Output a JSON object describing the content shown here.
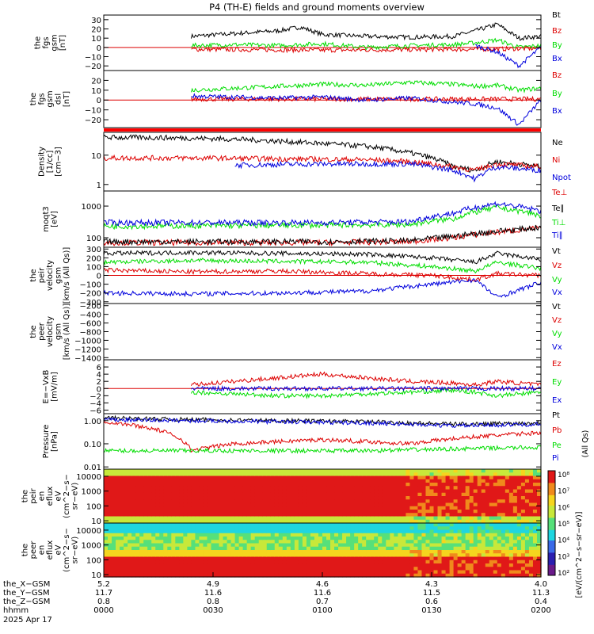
{
  "chart_data": {
    "title": "P4 (TH-E) fields and ground moments overview",
    "type": "line",
    "panels": [
      {
        "ylabel_lines": [
          "the",
          "fgs",
          "gsm",
          "[nT]"
        ],
        "ylim": [
          -25,
          35
        ],
        "yticks": [
          "30",
          "20",
          "10",
          "0",
          "−10",
          "−20"
        ],
        "ytick_values": [
          30,
          20,
          10,
          0,
          -10,
          -20
        ],
        "zero_line": true,
        "series": [
          {
            "name": "Bt",
            "color": "#000000",
            "x": [
              0.2,
              0.3,
              0.4,
              0.45,
              0.5,
              0.6,
              0.7,
              0.8,
              0.85,
              0.9,
              0.95,
              1.0
            ],
            "y": [
              12,
              15,
              18,
              22,
              14,
              12,
              11,
              12,
              18,
              25,
              10,
              12
            ]
          },
          {
            "name": "Bz",
            "color": "#dd0000",
            "x": [
              0.2,
              0.5,
              0.85,
              1.0
            ],
            "y": [
              -2,
              -3,
              -2,
              -1
            ]
          },
          {
            "name": "By",
            "color": "#00dd00",
            "x": [
              0.2,
              0.3,
              0.4,
              0.5,
              0.6,
              0.7,
              0.8,
              0.85,
              0.9,
              0.95,
              1.0
            ],
            "y": [
              2,
              3,
              2,
              4,
              0,
              2,
              3,
              5,
              8,
              0,
              2
            ]
          },
          {
            "name": "Bx",
            "color": "#0000dd",
            "x": [
              0.85,
              0.9,
              0.95,
              1.0
            ],
            "y": [
              2,
              -5,
              -20,
              0
            ]
          }
        ]
      },
      {
        "ylabel_lines": [
          "the",
          "fgs",
          "gsm",
          "dsl",
          "[nT]"
        ],
        "ylim": [
          -28,
          30
        ],
        "yticks": [
          "20",
          "10",
          "0",
          "−10",
          "−20"
        ],
        "ytick_values": [
          20,
          10,
          0,
          -10,
          -20
        ],
        "zero_line": true,
        "series": [
          {
            "name": "Bz",
            "color": "#dd0000",
            "x": [
              0.2,
              1.0
            ],
            "y": [
              1,
              1
            ]
          },
          {
            "name": "By",
            "color": "#00dd00",
            "x": [
              0.2,
              0.3,
              0.4,
              0.5,
              0.6,
              0.7,
              0.8,
              0.85,
              0.9,
              0.95,
              1.0
            ],
            "y": [
              10,
              12,
              14,
              16,
              15,
              18,
              16,
              14,
              15,
              10,
              12
            ]
          },
          {
            "name": "Bx",
            "color": "#0000dd",
            "x": [
              0.2,
              0.3,
              0.4,
              0.5,
              0.6,
              0.7,
              0.8,
              0.85,
              0.9,
              0.95,
              1.0
            ],
            "y": [
              4,
              3,
              2,
              3,
              0,
              2,
              -2,
              -4,
              -8,
              -25,
              0
            ]
          }
        ]
      },
      {
        "ylabel_lines": [
          "Density",
          "[1/cc]",
          "[cm−3]"
        ],
        "log": true,
        "ylim": [
          0.6,
          60
        ],
        "yticks": [
          "10",
          "1"
        ],
        "ytick_values": [
          10,
          1
        ],
        "series": [
          {
            "name": "Ne",
            "color": "#000000",
            "x": [
              0,
              0.1,
              0.2,
              0.3,
              0.4,
              0.5,
              0.6,
              0.7,
              0.8,
              0.85,
              0.9,
              0.95,
              1.0
            ],
            "y": [
              40,
              40,
              38,
              35,
              30,
              25,
              20,
              12,
              4,
              3,
              6,
              5,
              4
            ]
          },
          {
            "name": "Ni",
            "color": "#dd0000",
            "x": [
              0,
              0.2,
              0.4,
              0.6,
              0.7,
              0.8,
              0.85,
              0.9,
              1.0
            ],
            "y": [
              8,
              8,
              7.5,
              7,
              6,
              4,
              3,
              5,
              4
            ]
          },
          {
            "name": "Npot",
            "color": "#0000dd",
            "x": [
              0.3,
              0.4,
              0.5,
              0.6,
              0.7,
              0.8,
              0.85,
              0.9,
              1.0
            ],
            "y": [
              4.5,
              4.8,
              5,
              5,
              5,
              3,
              1.5,
              4,
              3
            ]
          }
        ]
      },
      {
        "ylabel_lines": [
          "moqt3",
          "[eV]"
        ],
        "log": true,
        "ylim": [
          50,
          3000
        ],
        "yticks": [
          "1000",
          "100"
        ],
        "ytick_values": [
          1000,
          100
        ],
        "series": [
          {
            "name": "Te⊥",
            "color": "#dd0000",
            "x": [
              0,
              0.5,
              0.7,
              0.8,
              0.9,
              1.0
            ],
            "y": [
              70,
              70,
              75,
              100,
              150,
              200
            ]
          },
          {
            "name": "Te∥",
            "color": "#000000",
            "x": [
              0,
              0.5,
              0.7,
              0.8,
              0.9,
              1.0
            ],
            "y": [
              75,
              75,
              80,
              110,
              160,
              210
            ]
          },
          {
            "name": "Ti⊥",
            "color": "#00dd00",
            "x": [
              0,
              0.5,
              0.7,
              0.8,
              0.9,
              1.0
            ],
            "y": [
              230,
              250,
              260,
              400,
              900,
              500
            ]
          },
          {
            "name": "Ti∥",
            "color": "#0000dd",
            "x": [
              0,
              0.5,
              0.7,
              0.8,
              0.9,
              1.0
            ],
            "y": [
              300,
              300,
              320,
              600,
              1200,
              700
            ]
          }
        ]
      },
      {
        "ylabel_lines": [
          "the",
          "peir",
          "velocity",
          "gsm",
          "[km/s (All Qs)]"
        ],
        "ylim": [
          -320,
          320
        ],
        "yticks": [
          "300",
          "200",
          "100",
          "0",
          "−100",
          "−200",
          "−300"
        ],
        "ytick_values": [
          300,
          200,
          100,
          0,
          -100,
          -200,
          -300
        ],
        "zero_line": true,
        "series": [
          {
            "name": "Vt",
            "color": "#000000",
            "x": [
              0,
              0.2,
              0.4,
              0.6,
              0.75,
              0.85,
              0.9,
              1.0
            ],
            "y": [
              250,
              260,
              250,
              240,
              200,
              150,
              250,
              180
            ]
          },
          {
            "name": "Vz",
            "color": "#dd0000",
            "x": [
              0,
              0.2,
              0.4,
              0.6,
              0.75,
              0.85,
              0.9,
              1.0
            ],
            "y": [
              60,
              40,
              50,
              20,
              0,
              -50,
              20,
              0
            ]
          },
          {
            "name": "Vy",
            "color": "#00dd00",
            "x": [
              0,
              0.2,
              0.4,
              0.6,
              0.75,
              0.85,
              0.9,
              1.0
            ],
            "y": [
              150,
              170,
              160,
              150,
              100,
              50,
              150,
              80
            ]
          },
          {
            "name": "Vx",
            "color": "#0000dd",
            "x": [
              0,
              0.2,
              0.4,
              0.6,
              0.75,
              0.85,
              0.9,
              1.0
            ],
            "y": [
              -200,
              -210,
              -200,
              -180,
              -100,
              -50,
              -250,
              -80
            ]
          }
        ]
      },
      {
        "ylabel_lines": [
          "the",
          "peer",
          "velocity",
          "gsm",
          "[km/s (All Qs)]"
        ],
        "ylim": [
          -1450,
          -150
        ],
        "yticks": [
          "−200",
          "−400",
          "−600",
          "−800",
          "−1000",
          "−1200",
          "−1400"
        ],
        "ytick_values": [
          -200,
          -400,
          -600,
          -800,
          -1000,
          -1200,
          -1400
        ],
        "series": [
          {
            "name": "Vt",
            "color": "#000000",
            "x": [],
            "y": []
          },
          {
            "name": "Vz",
            "color": "#dd0000",
            "x": [],
            "y": []
          },
          {
            "name": "Vy",
            "color": "#00dd00",
            "x": [],
            "y": []
          },
          {
            "name": "Vx",
            "color": "#0000dd",
            "x": [],
            "y": []
          }
        ]
      },
      {
        "ylabel_lines": [
          "E=−VxB",
          "[mV/m]"
        ],
        "ylim": [
          -7,
          8
        ],
        "yticks": [
          "6",
          "4",
          "2",
          "0",
          "−2",
          "−4",
          "−6"
        ],
        "ytick_values": [
          6,
          4,
          2,
          0,
          -2,
          -4,
          -6
        ],
        "zero_line": true,
        "series": [
          {
            "name": "Ez",
            "color": "#dd0000",
            "x": [
              0.2,
              0.3,
              0.4,
              0.5,
              0.6,
              0.7,
              0.8,
              0.85,
              0.9,
              1.0
            ],
            "y": [
              1,
              2,
              3,
              4,
              3,
              2,
              1.5,
              1,
              2,
              1
            ]
          },
          {
            "name": "Ey",
            "color": "#00dd00",
            "x": [
              0.2,
              0.3,
              0.4,
              0.5,
              0.6,
              0.7,
              0.8,
              0.85,
              0.9,
              1.0
            ],
            "y": [
              -1,
              -1.5,
              -2,
              -2,
              -1.5,
              -1,
              -0.5,
              -1,
              -2,
              -1
            ]
          },
          {
            "name": "Ex",
            "color": "#0000dd",
            "x": [
              0.2,
              1.0
            ],
            "y": [
              0,
              0
            ]
          }
        ]
      },
      {
        "ylabel_lines": [
          "Pressure",
          "[nPa]"
        ],
        "log": true,
        "ylim": [
          0.008,
          2
        ],
        "yticks": [
          "1.00",
          "0.10",
          "0.01"
        ],
        "ytick_values": [
          1,
          0.1,
          0.01
        ],
        "series": [
          {
            "name": "Pt",
            "color": "#000000",
            "x": [
              0,
              0.2,
              0.4,
              0.6,
              0.8,
              1.0
            ],
            "y": [
              1.3,
              1.1,
              1.0,
              0.9,
              0.7,
              0.8
            ]
          },
          {
            "name": "Pb",
            "color": "#dd0000",
            "x": [
              0,
              0.1,
              0.2,
              0.3,
              0.5,
              0.7,
              0.85,
              1.0
            ],
            "y": [
              0.9,
              0.5,
              0.05,
              0.1,
              0.15,
              0.1,
              0.2,
              0.3
            ]
          },
          {
            "name": "Pe",
            "color": "#00dd00",
            "x": [
              0,
              0.2,
              0.4,
              0.6,
              0.8,
              1.0
            ],
            "y": [
              0.05,
              0.05,
              0.05,
              0.05,
              0.06,
              0.07
            ]
          },
          {
            "name": "Pi",
            "color": "#0000dd",
            "x": [
              0,
              0.2,
              0.4,
              0.6,
              0.8,
              1.0
            ],
            "y": [
              1.1,
              1.0,
              0.9,
              0.8,
              0.6,
              0.7
            ]
          }
        ],
        "legend_note": "(All Qs)"
      },
      {
        "ylabel_lines": [
          "the",
          "peir",
          "en",
          "eflux",
          "eV",
          "(cm^2−s−",
          "sr−eV)"
        ],
        "type": "heatmap",
        "log": true,
        "ylim": [
          7,
          30000
        ],
        "yticks": [
          "10000",
          "1000",
          "100",
          "10"
        ],
        "ytick_values": [
          10000,
          1000,
          100,
          10
        ]
      },
      {
        "ylabel_lines": [
          "the",
          "peer",
          "en",
          "eflux",
          "eV",
          "(cm^2−s−",
          "sr−eV)"
        ],
        "type": "heatmap",
        "log": true,
        "ylim": [
          7,
          30000
        ],
        "yticks": [
          "10000",
          "1000",
          "100",
          "10"
        ],
        "ytick_values": [
          10000,
          1000,
          100,
          10
        ]
      }
    ],
    "colorbar": {
      "ticks": [
        "10⁸",
        "10⁷",
        "10⁶",
        "10⁵",
        "10⁴",
        "10³",
        "10²"
      ],
      "label": "[eV/(cm^2−s−sr−eV)]",
      "side_label": "[eV/(cm^2−s−sr−eV)](All Qs)"
    },
    "x_axis": {
      "rows": [
        {
          "label": "the_X−GSM",
          "values": [
            "5.2",
            "4.9",
            "4.6",
            "4.3",
            "4.0"
          ]
        },
        {
          "label": "the_Y−GSM",
          "values": [
            "11.7",
            "11.6",
            "11.6",
            "11.5",
            "11.3"
          ]
        },
        {
          "label": "the_Z−GSM",
          "values": [
            "0.8",
            "0.8",
            "0.7",
            "0.6",
            "0.4"
          ]
        },
        {
          "label": "hhmm",
          "values": [
            "0000",
            "0030",
            "0100",
            "0130",
            "0200"
          ]
        }
      ],
      "date": "2025 Apr 17"
    }
  }
}
